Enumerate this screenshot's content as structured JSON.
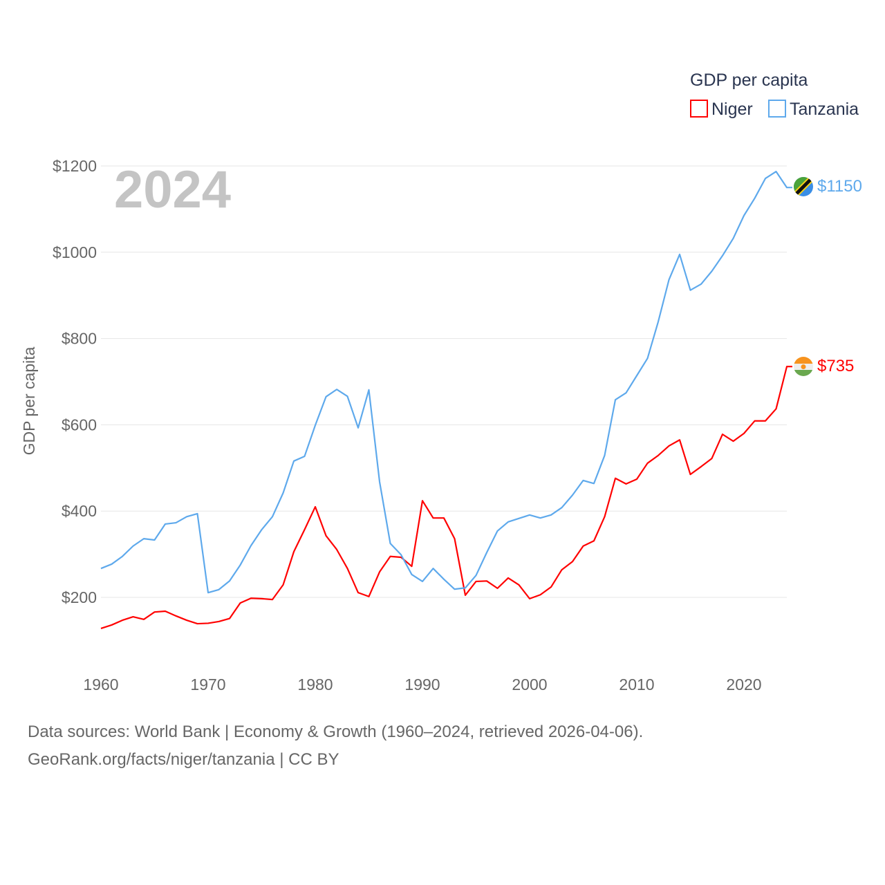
{
  "chart_data": {
    "type": "line",
    "title": "GDP per capita",
    "year_label": "2024",
    "xlabel": "",
    "ylabel": "GDP per capita",
    "xlim": [
      1960,
      2024
    ],
    "ylim": [
      200,
      1200
    ],
    "grid": true,
    "legend_placement": "top-right",
    "x_ticks": [
      "1960",
      "1970",
      "1980",
      "1990",
      "2000",
      "2010",
      "2020"
    ],
    "y_ticks": [
      "$200",
      "$400",
      "$600",
      "$800",
      "$1000",
      "$1200"
    ],
    "y_tick_values": [
      200,
      400,
      600,
      800,
      1000,
      1200
    ],
    "x_tick_values": [
      1960,
      1970,
      1980,
      1990,
      2000,
      2010,
      2020
    ],
    "x": [
      1960,
      1961,
      1962,
      1963,
      1964,
      1965,
      1966,
      1967,
      1968,
      1969,
      1970,
      1971,
      1972,
      1973,
      1974,
      1975,
      1976,
      1977,
      1978,
      1979,
      1980,
      1981,
      1982,
      1983,
      1984,
      1985,
      1986,
      1987,
      1988,
      1989,
      1990,
      1991,
      1992,
      1993,
      1994,
      1995,
      1996,
      1997,
      1998,
      1999,
      2000,
      2001,
      2002,
      2003,
      2004,
      2005,
      2006,
      2007,
      2008,
      2009,
      2010,
      2011,
      2012,
      2013,
      2014,
      2015,
      2016,
      2017,
      2018,
      2019,
      2020,
      2021,
      2022,
      2023,
      2024
    ],
    "series": [
      {
        "name": "Niger",
        "color": "#ff0000",
        "end_label": "$735",
        "values": [
          128,
          136,
          147,
          155,
          149,
          166,
          168,
          157,
          147,
          139,
          140,
          144,
          151,
          187,
          198,
          197,
          195,
          229,
          306,
          357,
          410,
          343,
          311,
          267,
          211,
          202,
          259,
          295,
          293,
          272,
          424,
          384,
          384,
          336,
          205,
          237,
          238,
          221,
          245,
          229,
          197,
          206,
          224,
          264,
          283,
          319,
          331,
          387,
          476,
          463,
          474,
          511,
          529,
          551,
          565,
          485,
          503,
          522,
          578,
          562,
          580,
          609,
          609,
          637,
          735
        ]
      },
      {
        "name": "Tanzania",
        "color": "#5ea9ec",
        "end_label": "$1150",
        "values": [
          267,
          277,
          295,
          319,
          336,
          333,
          370,
          373,
          387,
          394,
          211,
          218,
          238,
          275,
          320,
          357,
          387,
          442,
          516,
          527,
          599,
          665,
          682,
          666,
          593,
          681,
          468,
          325,
          299,
          253,
          237,
          267,
          242,
          219,
          222,
          251,
          304,
          354,
          375,
          383,
          391,
          384,
          391,
          408,
          437,
          471,
          464,
          529,
          658,
          674,
          714,
          754,
          839,
          936,
          995,
          912,
          926,
          956,
          992,
          1032,
          1085,
          1125,
          1171,
          1187,
          1150
        ]
      }
    ]
  },
  "footer": {
    "line1": "Data sources: World Bank | Economy & Growth (1960–2024, retrieved 2026-04-06).",
    "line2": "GeoRank.org/facts/niger/tanzania | CC BY"
  }
}
